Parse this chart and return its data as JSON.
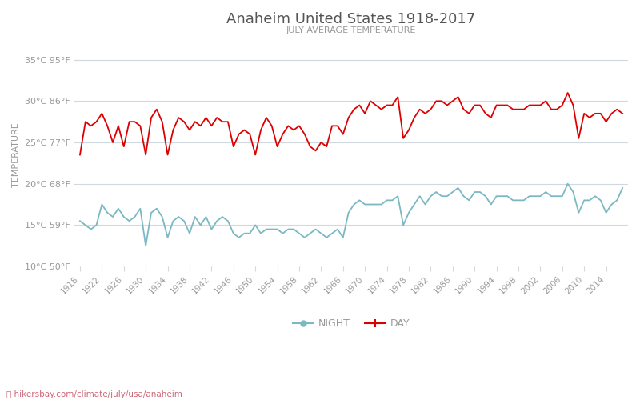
{
  "title": "Anaheim United States 1918-2017",
  "subtitle": "JULY AVERAGE TEMPERATURE",
  "ylabel": "TEMPERATURE",
  "xlabel_url": "hikersbay.com/climate/july/usa/anaheim",
  "years": [
    1918,
    1919,
    1920,
    1921,
    1922,
    1923,
    1924,
    1925,
    1926,
    1927,
    1928,
    1929,
    1930,
    1931,
    1932,
    1933,
    1934,
    1935,
    1936,
    1937,
    1938,
    1939,
    1940,
    1941,
    1942,
    1943,
    1944,
    1945,
    1946,
    1947,
    1948,
    1949,
    1950,
    1951,
    1952,
    1953,
    1954,
    1955,
    1956,
    1957,
    1958,
    1959,
    1960,
    1961,
    1962,
    1963,
    1964,
    1965,
    1966,
    1967,
    1968,
    1969,
    1970,
    1971,
    1972,
    1973,
    1974,
    1975,
    1976,
    1977,
    1978,
    1979,
    1980,
    1981,
    1982,
    1983,
    1984,
    1985,
    1986,
    1987,
    1988,
    1989,
    1990,
    1991,
    1992,
    1993,
    1994,
    1995,
    1996,
    1997,
    1998,
    1999,
    2000,
    2001,
    2002,
    2003,
    2004,
    2005,
    2006,
    2007,
    2008,
    2009,
    2010,
    2011,
    2012,
    2013,
    2014,
    2015,
    2016,
    2017
  ],
  "day_temps": [
    23.5,
    27.5,
    27.0,
    27.5,
    28.5,
    27.0,
    25.0,
    27.0,
    24.5,
    27.5,
    27.5,
    27.0,
    23.5,
    28.0,
    29.0,
    27.5,
    23.5,
    26.5,
    28.0,
    27.5,
    26.5,
    27.5,
    27.0,
    28.0,
    27.0,
    28.0,
    27.5,
    27.5,
    24.5,
    26.0,
    26.5,
    26.0,
    23.5,
    26.5,
    28.0,
    27.0,
    24.5,
    26.0,
    27.0,
    26.5,
    27.0,
    26.0,
    24.5,
    24.0,
    25.0,
    24.5,
    27.0,
    27.0,
    26.0,
    28.0,
    29.0,
    29.5,
    28.5,
    30.0,
    29.5,
    29.0,
    29.5,
    29.5,
    30.5,
    25.5,
    26.5,
    28.0,
    29.0,
    28.5,
    29.0,
    30.0,
    30.0,
    29.5,
    30.0,
    30.5,
    29.0,
    28.5,
    29.5,
    29.5,
    28.5,
    28.0,
    29.5,
    29.5,
    29.5,
    29.0,
    29.0,
    29.0,
    29.5,
    29.5,
    29.5,
    30.0,
    29.0,
    29.0,
    29.5,
    31.0,
    29.5,
    25.5,
    28.5,
    28.0,
    28.5,
    28.5,
    27.5,
    28.5,
    29.0,
    28.5
  ],
  "night_temps": [
    15.5,
    15.0,
    14.5,
    15.0,
    17.5,
    16.5,
    16.0,
    17.0,
    16.0,
    15.5,
    16.0,
    17.0,
    12.5,
    16.5,
    17.0,
    16.0,
    13.5,
    15.5,
    16.0,
    15.5,
    14.0,
    16.0,
    15.0,
    16.0,
    14.5,
    15.5,
    16.0,
    15.5,
    14.0,
    13.5,
    14.0,
    14.0,
    15.0,
    14.0,
    14.5,
    14.5,
    14.5,
    14.0,
    14.5,
    14.5,
    14.0,
    13.5,
    14.0,
    14.5,
    14.0,
    13.5,
    14.0,
    14.5,
    13.5,
    16.5,
    17.5,
    18.0,
    17.5,
    17.5,
    17.5,
    17.5,
    18.0,
    18.0,
    18.5,
    15.0,
    16.5,
    17.5,
    18.5,
    17.5,
    18.5,
    19.0,
    18.5,
    18.5,
    19.0,
    19.5,
    18.5,
    18.0,
    19.0,
    19.0,
    18.5,
    17.5,
    18.5,
    18.5,
    18.5,
    18.0,
    18.0,
    18.0,
    18.5,
    18.5,
    18.5,
    19.0,
    18.5,
    18.5,
    18.5,
    20.0,
    19.0,
    16.5,
    18.0,
    18.0,
    18.5,
    18.0,
    16.5,
    17.5,
    18.0,
    19.5
  ],
  "yticks_c": [
    10,
    15,
    20,
    25,
    30,
    35
  ],
  "yticks_f": [
    50,
    59,
    68,
    77,
    86,
    95
  ],
  "xtick_years": [
    1918,
    1922,
    1926,
    1930,
    1934,
    1938,
    1942,
    1946,
    1950,
    1954,
    1958,
    1962,
    1966,
    1970,
    1974,
    1978,
    1982,
    1986,
    1990,
    1994,
    1998,
    2002,
    2006,
    2010,
    2014
  ],
  "day_color": "#dd0000",
  "night_color": "#7ab8c4",
  "grid_color": "#d0d8e0",
  "bg_color": "#ffffff",
  "title_color": "#555555",
  "subtitle_color": "#999999",
  "ylabel_color": "#999999",
  "tick_color": "#999999",
  "url_color": "#cc6677",
  "ylim": [
    10,
    37
  ],
  "xlim": [
    1917,
    2018
  ],
  "figwidth": 8.0,
  "figheight": 5.0,
  "dpi": 100
}
